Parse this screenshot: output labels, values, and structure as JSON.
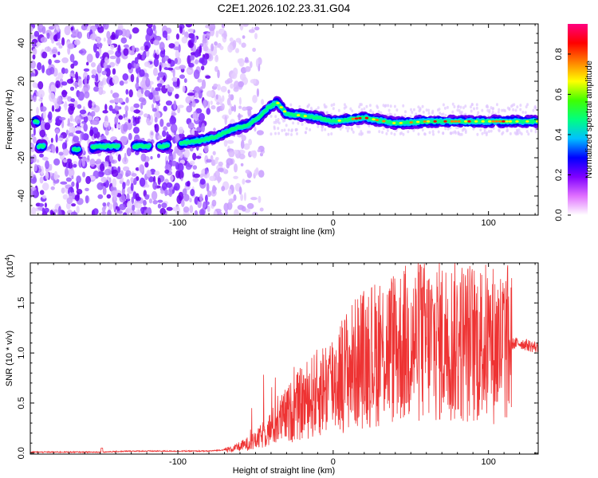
{
  "title": "C2E1.2026.102.23.31.G04",
  "chart_data": [
    {
      "type": "heatmap",
      "name": "spectrogram",
      "xlabel": "Height of straight line (km)",
      "ylabel": "Frequency (Hz)",
      "xlim": [
        -195,
        132
      ],
      "ylim": [
        -50,
        50
      ],
      "xticks": [
        -100,
        0,
        100
      ],
      "yticks": [
        -40,
        -20,
        0,
        20,
        40
      ],
      "ridge": [
        {
          "x": -190,
          "y": -14
        },
        {
          "x": -175,
          "y": -14
        },
        {
          "x": -165,
          "y": -16
        },
        {
          "x": -150,
          "y": -14
        },
        {
          "x": -140,
          "y": -14
        },
        {
          "x": -125,
          "y": -14
        },
        {
          "x": -110,
          "y": -14
        },
        {
          "x": -95,
          "y": -12
        },
        {
          "x": -85,
          "y": -11
        },
        {
          "x": -75,
          "y": -9
        },
        {
          "x": -65,
          "y": -5
        },
        {
          "x": -55,
          "y": -3
        },
        {
          "x": -48,
          "y": 1
        },
        {
          "x": -42,
          "y": 6
        },
        {
          "x": -36,
          "y": 9
        },
        {
          "x": -30,
          "y": 3
        },
        {
          "x": -20,
          "y": 2
        },
        {
          "x": -10,
          "y": 1
        },
        {
          "x": 0,
          "y": -1
        },
        {
          "x": 20,
          "y": 1
        },
        {
          "x": 40,
          "y": -2
        },
        {
          "x": 60,
          "y": -1
        },
        {
          "x": 80,
          "y": -1
        },
        {
          "x": 100,
          "y": -1
        },
        {
          "x": 132,
          "y": -1
        }
      ],
      "colorbar": {
        "label": "Normalized spectral amplitude",
        "range": [
          0,
          0.95
        ],
        "ticks": [
          "0.0",
          "0.2",
          "0.4",
          "0.6",
          "0.8"
        ],
        "colors": [
          "#ffffff",
          "#e070ff",
          "#8000ff",
          "#0000ff",
          "#00c0ff",
          "#00ff80",
          "#40ff00",
          "#ffff00",
          "#ff8000",
          "#ff0000",
          "#ff0080"
        ]
      }
    },
    {
      "type": "line",
      "name": "snr",
      "xlabel": "Height of straight line (km)",
      "ylabel": "SNR (10 * v/v)",
      "exponent_label": "(x10",
      "exponent_power": "4",
      "xlim": [
        -195,
        132
      ],
      "ylim": [
        -0.01,
        1.9
      ],
      "xticks": [
        -100,
        0,
        100
      ],
      "yticks": [
        "0.0",
        "0.5",
        "1.0",
        "1.5"
      ],
      "color": "#ee3333",
      "envelope": [
        {
          "x": -195,
          "y": 0.01
        },
        {
          "x": -150,
          "y": 0.01
        },
        {
          "x": -130,
          "y": 0.02
        },
        {
          "x": -100,
          "y": 0.02
        },
        {
          "x": -80,
          "y": 0.02
        },
        {
          "x": -65,
          "y": 0.04
        },
        {
          "x": -50,
          "y": 0.12
        },
        {
          "x": -40,
          "y": 0.25
        },
        {
          "x": -30,
          "y": 0.38
        },
        {
          "x": -20,
          "y": 0.5
        },
        {
          "x": -10,
          "y": 0.6
        },
        {
          "x": 0,
          "y": 0.72
        },
        {
          "x": 10,
          "y": 0.85
        },
        {
          "x": 20,
          "y": 0.95
        },
        {
          "x": 35,
          "y": 1.05
        },
        {
          "x": 50,
          "y": 1.1
        },
        {
          "x": 65,
          "y": 1.12
        },
        {
          "x": 80,
          "y": 1.12
        },
        {
          "x": 95,
          "y": 1.1
        },
        {
          "x": 110,
          "y": 1.08
        },
        {
          "x": 120,
          "y": 1.1
        },
        {
          "x": 132,
          "y": 1.05
        }
      ]
    }
  ]
}
